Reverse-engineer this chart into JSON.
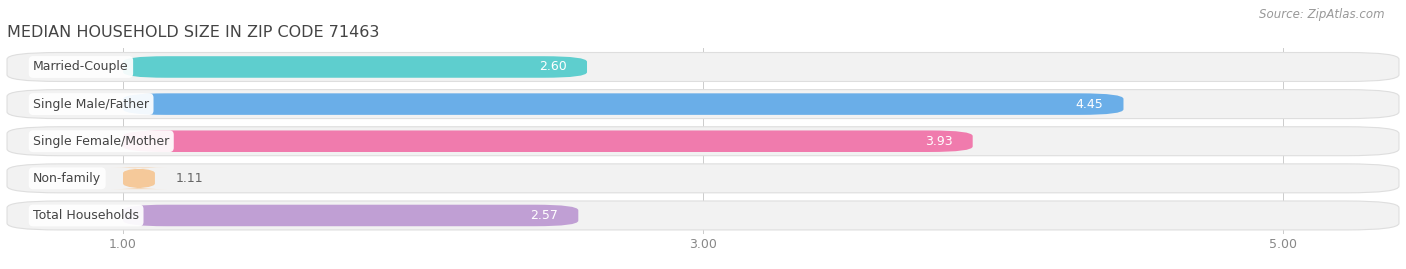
{
  "title": "MEDIAN HOUSEHOLD SIZE IN ZIP CODE 71463",
  "source": "Source: ZipAtlas.com",
  "categories": [
    "Married-Couple",
    "Single Male/Father",
    "Single Female/Mother",
    "Non-family",
    "Total Households"
  ],
  "values": [
    2.6,
    4.45,
    3.93,
    1.11,
    2.57
  ],
  "bar_colors": [
    "#5ECECE",
    "#6AAEE8",
    "#F07BAD",
    "#F5C99A",
    "#C09FD4"
  ],
  "bar_bg_color": "#F2F2F2",
  "background_color": "#FFFFFF",
  "xlim_min": 0.6,
  "xlim_max": 5.4,
  "xstart": 1.0,
  "xticks": [
    1.0,
    3.0,
    5.0
  ],
  "title_fontsize": 11.5,
  "label_fontsize": 9.0,
  "value_fontsize": 9.0,
  "source_fontsize": 8.5,
  "axis_tick_fontsize": 9.0
}
